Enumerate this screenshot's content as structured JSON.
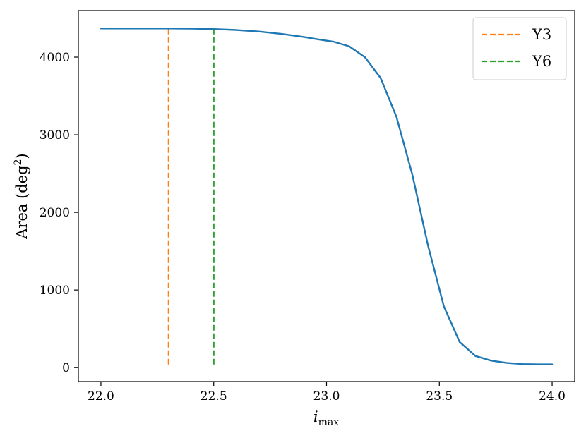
{
  "chart_data": {
    "type": "line",
    "title": "",
    "xlabel_main": "i",
    "xlabel_sub": "max",
    "ylabel_main": "Area (deg",
    "ylabel_sup": "2",
    "ylabel_close": ")",
    "xlim": [
      21.9,
      24.1
    ],
    "ylim": [
      -180,
      4600
    ],
    "xticks": [
      22.0,
      22.5,
      23.0,
      23.5,
      24.0
    ],
    "xtick_labels": [
      "22.0",
      "22.5",
      "23.0",
      "23.5",
      "24.0"
    ],
    "yticks": [
      0,
      1000,
      2000,
      3000,
      4000
    ],
    "ytick_labels": [
      "0",
      "1000",
      "2000",
      "3000",
      "4000"
    ],
    "grid": false,
    "legend_position": "top-right",
    "series": [
      {
        "color": "#1f77b4",
        "style": "solid",
        "x": [
          22.0,
          22.1,
          22.2,
          22.3,
          22.4,
          22.5,
          22.6,
          22.7,
          22.8,
          22.9,
          22.96,
          23.03,
          23.1,
          23.17,
          23.24,
          23.31,
          23.38,
          23.45,
          23.52,
          23.59,
          23.66,
          23.73,
          23.8,
          23.87,
          23.94,
          24.0
        ],
        "y": [
          4370,
          4370,
          4370,
          4370,
          4368,
          4362,
          4350,
          4330,
          4300,
          4260,
          4230,
          4200,
          4140,
          4000,
          3730,
          3230,
          2490,
          1570,
          790,
          330,
          150,
          90,
          60,
          45,
          42,
          42
        ]
      }
    ],
    "vlines": [
      {
        "name": "Y3",
        "x": 22.3,
        "y_range": [
          40,
          4370
        ],
        "color": "#ff7f0e",
        "style": "dashed"
      },
      {
        "name": "Y6",
        "x": 22.5,
        "y_range": [
          40,
          4370
        ],
        "color": "#2ca02c",
        "style": "dashed"
      }
    ]
  }
}
